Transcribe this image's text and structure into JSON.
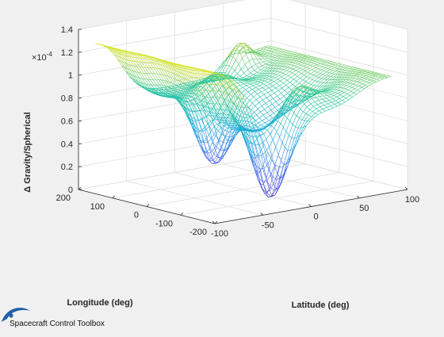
{
  "chart_data": {
    "type": "surface",
    "xlabel": "Latitude (deg)",
    "ylabel": "Longitude (deg)",
    "zlabel": "Δ Gravity/Spherical",
    "z_exponent_label": "×10",
    "z_exponent_power": "-4",
    "x_ticks": [
      -100,
      -50,
      0,
      50,
      100
    ],
    "x_tick_labels": [
      "-100",
      "-50",
      "0",
      "50",
      "100"
    ],
    "y_ticks": [
      -200,
      -100,
      0,
      100,
      200
    ],
    "y_tick_labels": [
      "-200",
      "-100",
      "0",
      "100",
      "200"
    ],
    "z_ticks": [
      0,
      0.2,
      0.4,
      0.6,
      0.8,
      1,
      1.2,
      1.4
    ],
    "z_tick_labels": [
      "0",
      "0.2",
      "0.4",
      "0.6",
      "0.8",
      "1",
      "1.2",
      "1.4"
    ],
    "xlim": [
      -100,
      100
    ],
    "ylim": [
      -200,
      200
    ],
    "zlim": [
      0,
      1.4
    ],
    "z_scale": 0.0001,
    "grid": true,
    "colormap": "parula",
    "surface_style": "mesh",
    "surface_samples": {
      "latitude_deg": [
        -90,
        -45,
        0,
        45,
        90
      ],
      "longitude_deg": [
        -180,
        -90,
        0,
        90,
        180
      ],
      "value_x1e-4": [
        [
          1.3,
          1.3,
          1.3,
          1.3,
          1.3
        ],
        [
          0.45,
          0.9,
          0.95,
          0.95,
          0.45
        ],
        [
          0.05,
          0.55,
          0.6,
          0.55,
          0.05
        ],
        [
          0.95,
          0.95,
          1.0,
          0.95,
          0.95
        ],
        [
          1.0,
          1.0,
          1.0,
          1.0,
          1.0
        ]
      ]
    },
    "colors": {
      "background": "#f0f0f0",
      "axes_background": "#ffffff",
      "grid": "#dcdcdc",
      "axis_line": "#262626",
      "text": "#262626"
    }
  },
  "branding": {
    "text": "Spacecraft Control Toolbox",
    "logo_icon": "swoosh-logo-icon",
    "logo_color": "#1f5fa8"
  }
}
